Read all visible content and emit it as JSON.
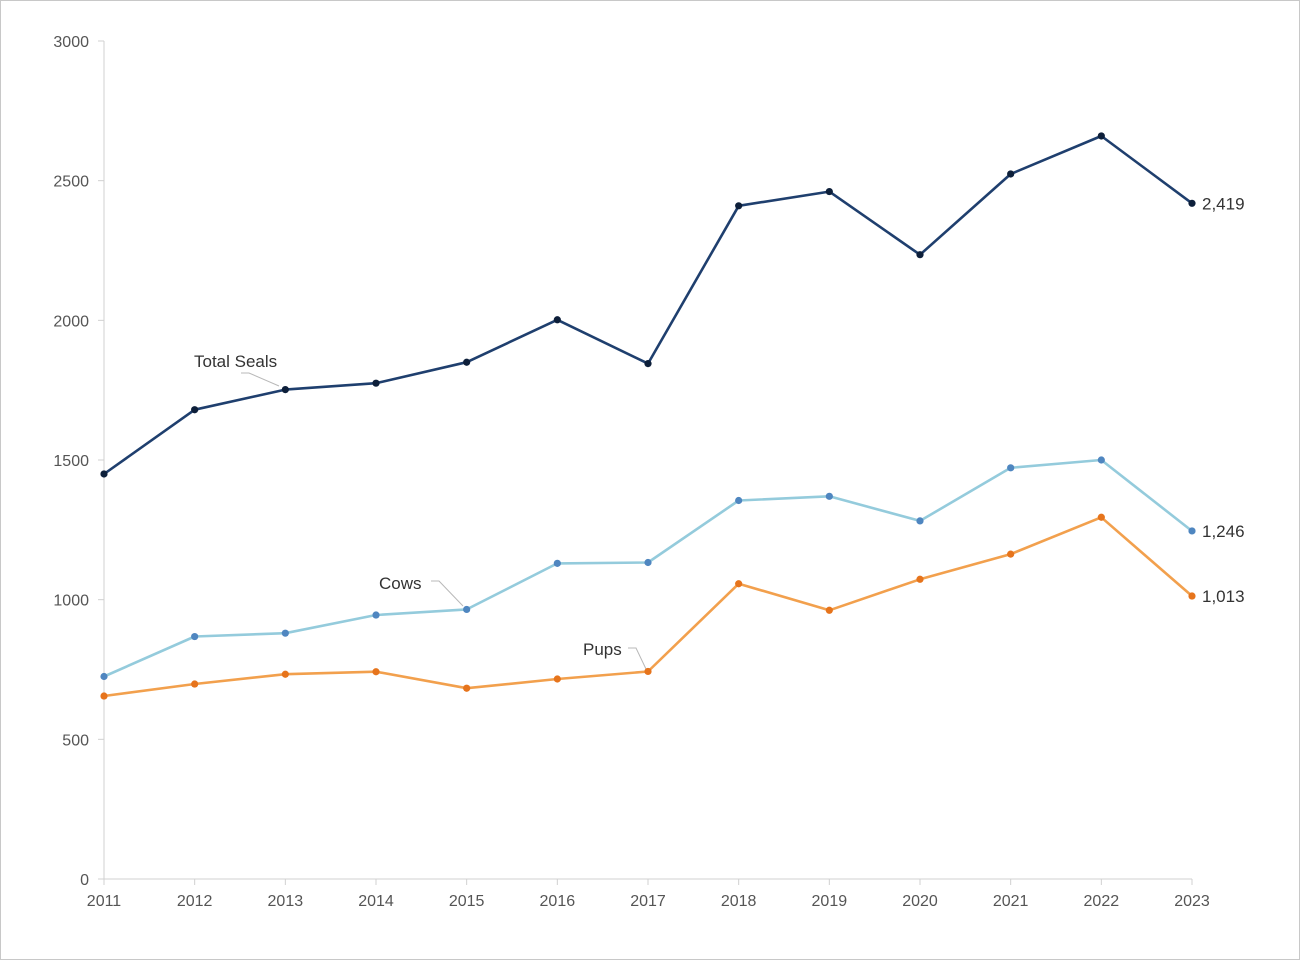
{
  "chart_data": {
    "type": "line",
    "title": "",
    "xlabel": "",
    "ylabel": "",
    "x": [
      "2011",
      "2012",
      "2013",
      "2014",
      "2015",
      "2016",
      "2017",
      "2018",
      "2019",
      "2020",
      "2021",
      "2022",
      "2023"
    ],
    "ylim": [
      0,
      3000
    ],
    "yticks": [
      0,
      500,
      1000,
      1500,
      2000,
      2500,
      3000
    ],
    "grid": false,
    "legend": "inline labels",
    "series": [
      {
        "name": "Total Seals",
        "color": "#1f3f6e",
        "marker_color": "#0d1f3a",
        "values": [
          1450,
          1680,
          1752,
          1775,
          1850,
          2002,
          1845,
          2410,
          2461,
          2235,
          2524,
          2660,
          2419
        ],
        "end_label": "2,419"
      },
      {
        "name": "Cows",
        "color": "#94cbdc",
        "marker_color": "#4f86c0",
        "values": [
          725,
          868,
          880,
          945,
          965,
          1130,
          1133,
          1355,
          1370,
          1282,
          1472,
          1500,
          1246
        ],
        "end_label": "1,246"
      },
      {
        "name": "Pups",
        "color": "#f2a04d",
        "marker_color": "#e6741c",
        "values": [
          655,
          698,
          733,
          742,
          683,
          716,
          743,
          1057,
          962,
          1073,
          1163,
          1295,
          1013
        ],
        "end_label": "1,013"
      }
    ]
  }
}
